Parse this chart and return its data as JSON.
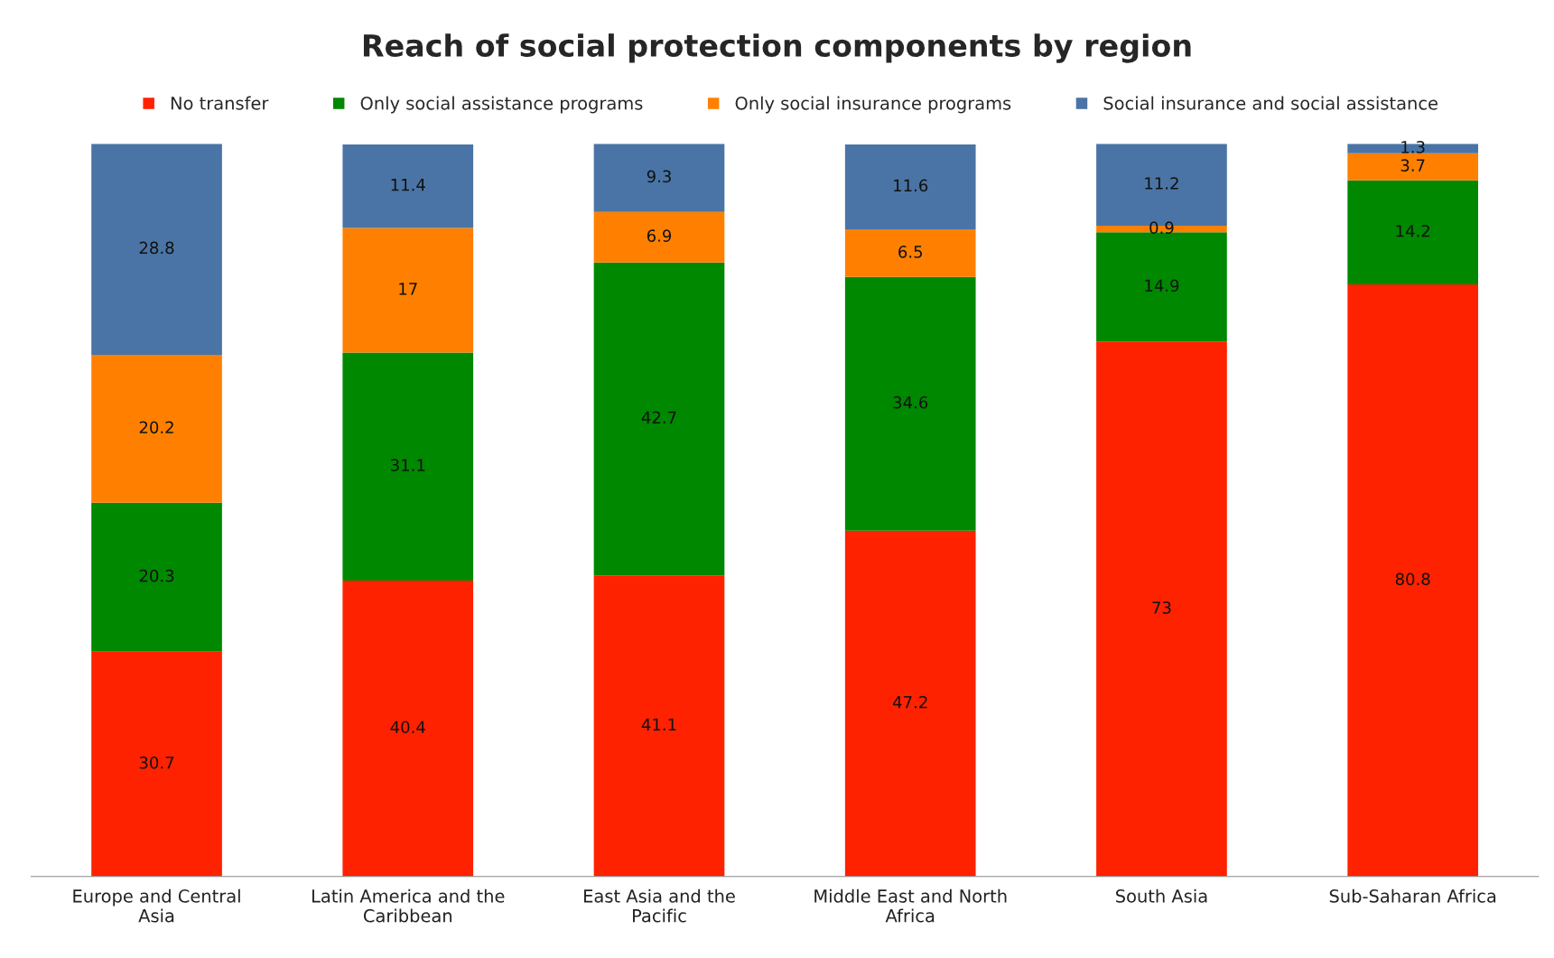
{
  "chart_data": {
    "type": "bar",
    "title": "Reach of social protection components by region",
    "stacked": true,
    "data_labels": true,
    "legend": "top",
    "grid": false,
    "categories": [
      "Europe and Central Asia",
      "Latin America and the Caribbean",
      "East Asia and the Pacific",
      "Middle East and North Africa",
      "South Asia",
      "Sub-Saharan Africa"
    ],
    "series": [
      {
        "name": "No transfer",
        "color": "#ff2200",
        "values": [
          30.7,
          40.4,
          41.1,
          47.2,
          73,
          80.8
        ]
      },
      {
        "name": "Only social assistance programs",
        "color": "#008800",
        "values": [
          20.3,
          31.1,
          42.7,
          34.6,
          14.9,
          14.2
        ]
      },
      {
        "name": "Only social insurance programs",
        "color": "#ff8000",
        "values": [
          20.2,
          17,
          6.9,
          6.5,
          0.9,
          3.7
        ]
      },
      {
        "name": "Social insurance and social assistance",
        "color": "#4a74a5",
        "values": [
          28.8,
          11.4,
          9.3,
          11.6,
          11.2,
          1.3
        ]
      }
    ]
  }
}
